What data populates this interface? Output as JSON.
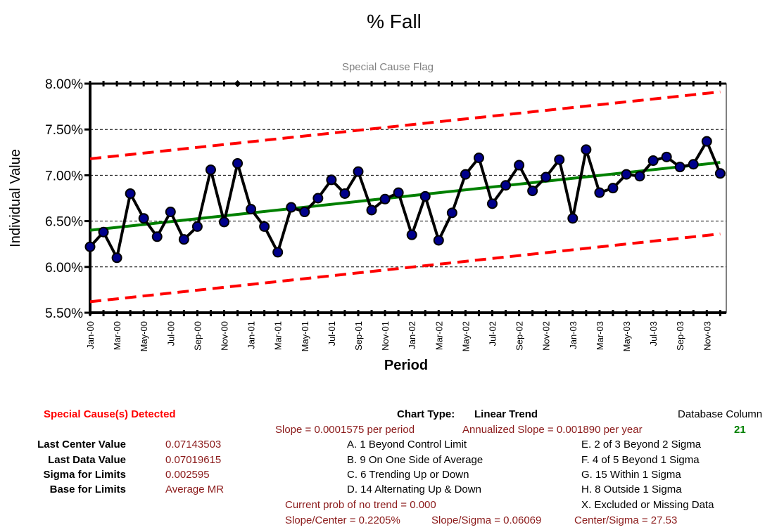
{
  "chart_data": {
    "type": "line",
    "title": "% Fall",
    "subtitle": "Special Cause Flag",
    "xlabel": "Period",
    "ylabel": "Individual Value",
    "ylim": [
      0.055,
      0.08
    ],
    "y_ticks": [
      "5.50%",
      "6.00%",
      "6.50%",
      "7.00%",
      "7.50%",
      "8.00%"
    ],
    "x_tick_labels": [
      "Jan-00",
      "Mar-00",
      "May-00",
      "Jul-00",
      "Sep-00",
      "Nov-00",
      "Jan-01",
      "Mar-01",
      "May-01",
      "Jul-01",
      "Sep-01",
      "Nov-01",
      "Jan-02",
      "Mar-02",
      "May-02",
      "Jul-02",
      "Sep-02",
      "Nov-02",
      "Jan-03",
      "Mar-03",
      "May-03",
      "Jul-03",
      "Sep-03",
      "Nov-03"
    ],
    "grid": "horizontal dashed",
    "series": [
      {
        "values": [
          0.0622,
          0.0638,
          0.061,
          0.068,
          0.0653,
          0.0633,
          0.066,
          0.063,
          0.0644,
          0.0706,
          0.0649,
          0.0713,
          0.0663,
          0.0644,
          0.0616,
          0.0665,
          0.066,
          0.0675,
          0.0695,
          0.068,
          0.0704,
          0.0662,
          0.0674,
          0.0681,
          0.0635,
          0.0677,
          0.0629,
          0.0659,
          0.0701,
          0.0719,
          0.0669,
          0.0689,
          0.0711,
          0.0683,
          0.0698,
          0.0717,
          0.0653,
          0.0728,
          0.0681,
          0.0686,
          0.0701,
          0.0699,
          0.0716,
          0.072,
          0.0709,
          0.0712,
          0.0737,
          0.0702
        ],
        "color": "#000000",
        "marker_color": "#00008b"
      }
    ],
    "center_line": {
      "start": 0.064,
      "end": 0.0714,
      "color": "#008000"
    },
    "upper_limit": {
      "start": 0.0718,
      "end": 0.0791,
      "color": "#ff0000"
    },
    "lower_limit": {
      "start": 0.0562,
      "end": 0.0636,
      "color": "#ff0000"
    },
    "special_cause_flags": [
      11
    ]
  },
  "info": {
    "special_cause": "Special Cause(s) Detected",
    "chart_type_label": "Chart Type:",
    "chart_type_value": "Linear Trend",
    "database_column_label": "Database Column",
    "database_column_value": "21",
    "slope": "Slope = 0.0001575 per period",
    "annualized_slope": "Annualized Slope = 0.001890 per year",
    "last_center_label": "Last Center Value",
    "last_center_value": "0.07143503",
    "last_data_label": "Last Data Value",
    "last_data_value": "0.07019615",
    "sigma_label": "Sigma for Limits",
    "sigma_value": "0.002595",
    "base_label": "Base for Limits",
    "base_value": "Average MR",
    "rule_a": "A.  1 Beyond Control Limit",
    "rule_b": "B.  9 On One Side of Average",
    "rule_c": "C.  6 Trending Up or Down",
    "rule_d": "D.  14 Alternating  Up & Down",
    "rule_e": "E.  2 of 3 Beyond 2 Sigma",
    "rule_f": "F.  4 of 5 Beyond 1 Sigma",
    "rule_g": "G.  15 Within 1 Sigma",
    "rule_h": "H.  8 Outside 1 Sigma",
    "rule_x": "X.  Excluded or Missing Data",
    "prob_no_trend": "Current prob of no trend = 0.000",
    "slope_center": "Slope/Center = 0.2205%",
    "slope_sigma": "Slope/Sigma = 0.06069",
    "center_sigma": "Center/Sigma = 27.53"
  }
}
